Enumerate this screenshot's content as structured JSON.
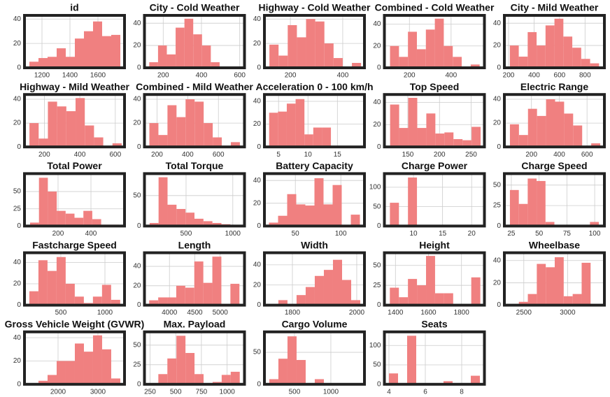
{
  "chart_data": [
    {
      "type": "histogram",
      "title": "id",
      "bins": [
        1110,
        1175,
        1240,
        1305,
        1370,
        1435,
        1500,
        1565,
        1630,
        1695,
        1760
      ],
      "values": [
        5,
        8,
        9,
        16,
        9,
        24,
        30,
        38,
        26,
        27
      ],
      "color": "#f08080",
      "xlim": [
        1075,
        1790
      ],
      "xticks": [
        1200,
        1400,
        1600
      ],
      "ylim": [
        0,
        43
      ],
      "yticks": [
        0,
        20,
        40
      ],
      "grid": true
    },
    {
      "type": "histogram",
      "title": "City - Cold Weather",
      "bins": [
        127,
        173,
        219,
        265,
        311,
        357,
        403,
        449,
        495,
        541,
        587
      ],
      "values": [
        5,
        20,
        12,
        36,
        44,
        30,
        20,
        5,
        0,
        1
      ],
      "color": "#f08080",
      "xlim": [
        102,
        625
      ],
      "xticks": [
        200,
        400,
        600
      ],
      "ylim": [
        0,
        47
      ],
      "yticks": [
        0,
        20,
        40
      ],
      "grid": true
    },
    {
      "type": "histogram",
      "title": "Highway - Cold Weather",
      "bins": [
        120,
        155,
        190,
        225,
        260,
        295,
        330,
        365,
        400,
        435,
        470
      ],
      "values": [
        19,
        10,
        35,
        25,
        40,
        38,
        20,
        8,
        0,
        4
      ],
      "color": "#f08080",
      "xlim": [
        101,
        483
      ],
      "xticks": [
        200,
        400
      ],
      "ylim": [
        0,
        43
      ],
      "yticks": [
        0,
        20,
        40
      ],
      "grid": true
    },
    {
      "type": "histogram",
      "title": "Combined - Cold Weather",
      "bins": [
        107,
        150,
        193,
        236,
        279,
        322,
        365,
        408,
        451,
        494,
        537
      ],
      "values": [
        20,
        10,
        33,
        17,
        35,
        45,
        20,
        10,
        0,
        3
      ],
      "color": "#f08080",
      "xlim": [
        80,
        560
      ],
      "xticks": [
        200,
        400
      ],
      "ylim": [
        0,
        48
      ],
      "yticks": [
        0,
        20,
        40
      ],
      "grid": true
    },
    {
      "type": "histogram",
      "title": "City - Mild Weather",
      "bins": [
        210,
        280,
        350,
        420,
        490,
        560,
        630,
        700,
        770,
        840,
        910
      ],
      "values": [
        20,
        10,
        32,
        20,
        38,
        44,
        28,
        18,
        8,
        4
      ],
      "color": "#f08080",
      "xlim": [
        167,
        952
      ],
      "xticks": [
        200,
        400,
        600,
        800
      ],
      "ylim": [
        0,
        47
      ],
      "yticks": [
        0,
        20,
        40
      ],
      "grid": true
    },
    {
      "type": "histogram",
      "title": "Highway - Mild Weather",
      "bins": [
        116,
        168,
        220,
        272,
        324,
        376,
        428,
        480,
        532,
        584,
        636
      ],
      "values": [
        20,
        7,
        38,
        34,
        30,
        41,
        18,
        8,
        0,
        3
      ],
      "color": "#f08080",
      "xlim": [
        88,
        652
      ],
      "xticks": [
        200,
        400,
        600
      ],
      "ylim": [
        0,
        44
      ],
      "yticks": [
        0,
        20,
        40
      ],
      "grid": true
    },
    {
      "type": "histogram",
      "title": "Combined - Mild Weather",
      "bins": [
        150,
        209,
        268,
        327,
        386,
        445,
        504,
        563,
        622,
        681,
        740
      ],
      "values": [
        20,
        10,
        35,
        25,
        40,
        38,
        20,
        8,
        0,
        4
      ],
      "color": "#f08080",
      "xlim": [
        118,
        770
      ],
      "xticks": [
        200,
        400,
        600
      ],
      "ylim": [
        0,
        44
      ],
      "yticks": [
        0,
        20,
        40
      ],
      "grid": true
    },
    {
      "type": "histogram",
      "title": "Acceleration 0 - 100 km/h",
      "bins": [
        3.4,
        4.9,
        6.4,
        7.9,
        9.4,
        10.9,
        12.4,
        13.9,
        15.4,
        16.9,
        18.4
      ],
      "values": [
        30,
        31,
        38,
        42,
        11,
        17,
        17,
        0,
        0,
        1
      ],
      "color": "#f08080",
      "xlim": [
        2.6,
        19.6
      ],
      "xticks": [
        5,
        10,
        15
      ],
      "ylim": [
        0,
        46
      ],
      "yticks": [
        0,
        20,
        40
      ],
      "grid": true
    },
    {
      "type": "histogram",
      "title": "Top Speed",
      "bins": [
        122,
        136.3,
        150.6,
        164.9,
        179.2,
        193.5,
        207.8,
        222.1,
        236.4,
        250.7,
        265
      ],
      "values": [
        38,
        17,
        44,
        17,
        30,
        12,
        13,
        7,
        6,
        18
      ],
      "color": "#f08080",
      "xlim": [
        113,
        271
      ],
      "xticks": [
        150,
        200,
        250
      ],
      "ylim": [
        0,
        47
      ],
      "yticks": [
        0,
        20,
        40
      ],
      "grid": true
    },
    {
      "type": "histogram",
      "title": "Electric Range",
      "bins": [
        45,
        110,
        175,
        240,
        305,
        370,
        435,
        500,
        565,
        630,
        695
      ],
      "values": [
        19,
        10,
        32,
        26,
        40,
        38,
        28,
        18,
        0,
        3
      ],
      "color": "#f08080",
      "xlim": [
        5,
        725
      ],
      "xticks": [
        200,
        400,
        600
      ],
      "ylim": [
        0,
        44
      ],
      "yticks": [
        0,
        20,
        40
      ],
      "grid": true
    },
    {
      "type": "histogram",
      "title": "Total Power",
      "bins": [
        30,
        84,
        138,
        192,
        246,
        300,
        354,
        408,
        462,
        516,
        570
      ],
      "values": [
        5,
        70,
        50,
        22,
        18,
        12,
        22,
        10,
        2,
        2
      ],
      "color": "#f08080",
      "xlim": [
        -4,
        604
      ],
      "xticks": [
        200,
        400
      ],
      "ylim": [
        0,
        76
      ],
      "yticks": [
        0,
        25,
        50
      ],
      "grid": true
    },
    {
      "type": "histogram",
      "title": "Total Torque",
      "bins": [
        110,
        206,
        302,
        398,
        494,
        590,
        686,
        782,
        878,
        974,
        1070
      ],
      "values": [
        5,
        80,
        35,
        28,
        22,
        12,
        8,
        5,
        3,
        2
      ],
      "color": "#f08080",
      "xlim": [
        55,
        1125
      ],
      "xticks": [
        500,
        1000
      ],
      "ylim": [
        0,
        86
      ],
      "yticks": [
        0,
        50
      ],
      "grid": true
    },
    {
      "type": "histogram",
      "title": "Battery Capacity",
      "bins": [
        21,
        31,
        41,
        51,
        61,
        71,
        81,
        91,
        101,
        111,
        121
      ],
      "values": [
        3,
        9,
        28,
        19,
        18,
        42,
        19,
        36,
        0,
        10
      ],
      "color": "#f08080",
      "xlim": [
        16,
        126
      ],
      "xticks": [
        50,
        100
      ],
      "ylim": [
        0,
        46
      ],
      "yticks": [
        0,
        20,
        40
      ],
      "grid": true
    },
    {
      "type": "histogram",
      "title": "Charge Power",
      "bins": [
        5.95,
        7.5,
        9.05,
        10.6,
        12.15,
        13.7,
        15.25,
        16.8,
        18.35,
        19.9,
        21.45
      ],
      "values": [
        60,
        0,
        125,
        0,
        0,
        0,
        0,
        0,
        0,
        3
      ],
      "color": "#f08080",
      "xlim": [
        5,
        22.2
      ],
      "xticks": [
        10,
        15,
        20
      ],
      "ylim": [
        0,
        135
      ],
      "yticks": [
        0,
        50,
        100
      ],
      "grid": true
    },
    {
      "type": "histogram",
      "title": "Charge Speed",
      "bins": [
        23.75,
        31.75,
        39.75,
        47.75,
        55.75,
        63.75,
        71.75,
        79.75,
        87.75,
        95.75,
        103.75
      ],
      "values": [
        44,
        27,
        58,
        55,
        5,
        0,
        0,
        0,
        0,
        5
      ],
      "color": "#f08080",
      "xlim": [
        18.75,
        108.75
      ],
      "xticks": [
        25,
        50,
        75,
        100
      ],
      "ylim": [
        0,
        64
      ],
      "yticks": [
        0,
        25,
        50
      ],
      "grid": true
    },
    {
      "type": "histogram",
      "title": "Fastcharge Speed",
      "bins": [
        143,
        246,
        349,
        452,
        555,
        658,
        761,
        864,
        967,
        1070,
        1173
      ],
      "values": [
        13,
        42,
        32,
        45,
        20,
        8,
        2,
        8,
        19,
        5
      ],
      "color": "#f08080",
      "xlim": [
        88,
        1222
      ],
      "xticks": [
        500,
        1000
      ],
      "ylim": [
        0,
        49
      ],
      "yticks": [
        0,
        20,
        40
      ],
      "grid": true
    },
    {
      "type": "histogram",
      "title": "Length",
      "bins": [
        3600,
        3778,
        3956,
        4134,
        4312,
        4490,
        4668,
        4846,
        5024,
        5202,
        5380
      ],
      "values": [
        5,
        8,
        8,
        20,
        18,
        45,
        23,
        50,
        0,
        22
      ],
      "color": "#f08080",
      "xlim": [
        3507,
        5480
      ],
      "xticks": [
        4000,
        4500,
        5000
      ],
      "ylim": [
        0,
        54
      ],
      "yticks": [
        0,
        20,
        40
      ],
      "grid": true
    },
    {
      "type": "histogram",
      "title": "Width",
      "bins": [
        1728,
        1756.3,
        1784.6,
        1812.9,
        1841.2,
        1869.5,
        1897.8,
        1926.1,
        1954.4,
        1982.7,
        2011
      ],
      "values": [
        0,
        5,
        0,
        10,
        18,
        29,
        35,
        45,
        25,
        5
      ],
      "color": "#f08080",
      "xlim": [
        1713,
        2024
      ],
      "xticks": [
        1800,
        2000
      ],
      "ylim": [
        0,
        52
      ],
      "yticks": [
        0,
        20,
        40
      ],
      "grid": true
    },
    {
      "type": "histogram",
      "title": "Height",
      "bins": [
        1366,
        1420.8,
        1475.6,
        1530.4,
        1585.2,
        1640,
        1694.8,
        1749.6,
        1804.4,
        1859.2,
        1914
      ],
      "values": [
        22,
        10,
        33,
        25,
        62,
        15,
        15,
        0,
        0,
        35
      ],
      "color": "#f08080",
      "xlim": [
        1333,
        1939
      ],
      "xticks": [
        1400,
        1600,
        1800
      ],
      "ylim": [
        0,
        66
      ],
      "yticks": [
        0,
        25,
        50
      ],
      "grid": true
    },
    {
      "type": "histogram",
      "title": "Wheelbase",
      "bins": [
        2341,
        2443.4,
        2545.8,
        2648.2,
        2750.6,
        2853,
        2955.4,
        3057.8,
        3160.2,
        3262.6,
        3365
      ],
      "values": [
        0,
        3,
        10,
        37,
        34,
        43,
        8,
        10,
        38,
        0
      ],
      "color": "#f08080",
      "xlim": [
        2278,
        3420
      ],
      "xticks": [
        2500,
        3000
      ],
      "ylim": [
        0,
        47
      ],
      "yticks": [
        0,
        20,
        40
      ],
      "grid": true
    },
    {
      "type": "histogram",
      "title": "Gross Vehicle Weight (GVWR)",
      "bins": [
        1281,
        1509,
        1737,
        1965,
        2193,
        2421,
        2649,
        2877,
        3105,
        3333,
        3561
      ],
      "values": [
        0,
        3,
        8,
        20,
        20,
        35,
        28,
        42,
        30,
        5
      ],
      "color": "#f08080",
      "xlim": [
        1158,
        3667
      ],
      "xticks": [
        2000,
        3000
      ],
      "ylim": [
        0,
        45
      ],
      "yticks": [
        0,
        20,
        40
      ],
      "grid": true
    },
    {
      "type": "histogram",
      "title": "Max. Payload",
      "bins": [
        243,
        331,
        419,
        507,
        595,
        683,
        771,
        859,
        947,
        1035,
        1123
      ],
      "values": [
        0,
        13,
        33,
        62,
        40,
        13,
        0,
        3,
        12,
        16
      ],
      "color": "#f08080",
      "xlim": [
        196,
        1169
      ],
      "xticks": [
        250,
        500,
        750,
        1000
      ],
      "ylim": [
        0,
        67
      ],
      "yticks": [
        0,
        25,
        50
      ],
      "grid": true
    },
    {
      "type": "histogram",
      "title": "Cargo Volume",
      "bins": [
        154,
        279,
        404,
        529,
        654,
        779,
        904,
        1029,
        1154,
        1279,
        1404
      ],
      "values": [
        8,
        40,
        75,
        38,
        0,
        8,
        0,
        0,
        0,
        0
      ],
      "color": "#f08080",
      "xlim": [
        87,
        1462
      ],
      "xticks": [
        500,
        1000
      ],
      "ylim": [
        0,
        82
      ],
      "yticks": [
        0,
        50
      ],
      "grid": true
    },
    {
      "type": "histogram",
      "title": "Seats",
      "bins": [
        4,
        4.5,
        5,
        5.5,
        6,
        6.5,
        7,
        7.5,
        8,
        8.5,
        9
      ],
      "values": [
        28,
        0,
        125,
        0,
        3,
        0,
        8,
        0,
        0,
        22
      ],
      "color": "#f08080",
      "xlim": [
        3.75,
        9.25
      ],
      "xticks": [
        4,
        6,
        8
      ],
      "ylim": [
        0,
        135
      ],
      "yticks": [
        0,
        50,
        100
      ],
      "grid": true
    }
  ]
}
